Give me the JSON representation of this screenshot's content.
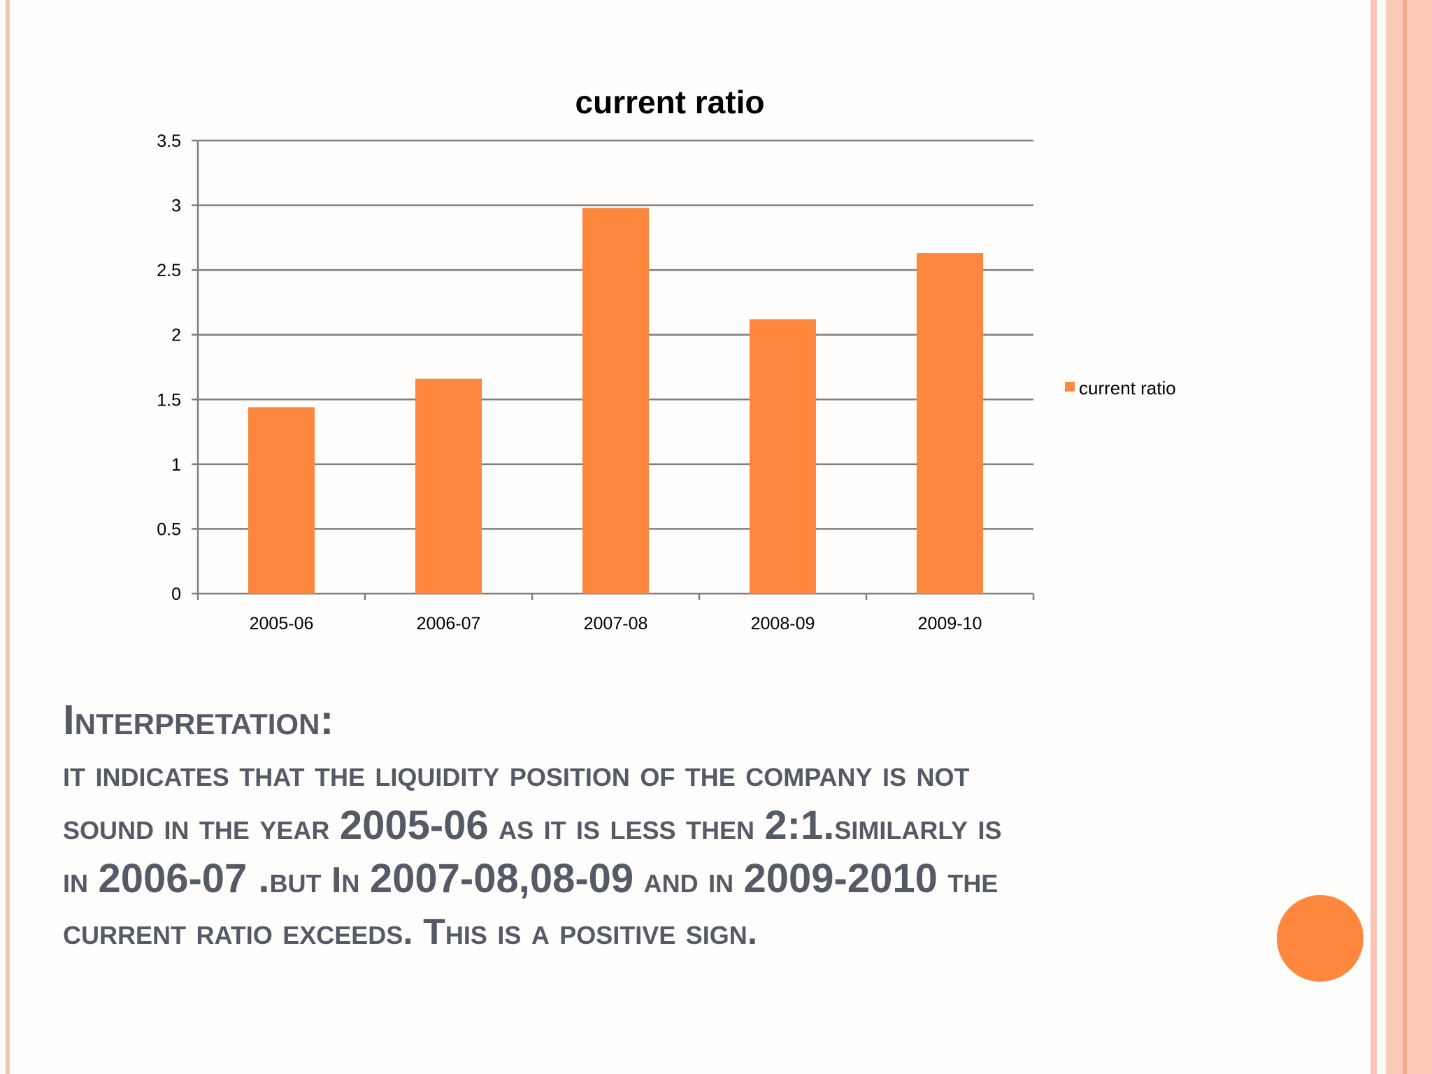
{
  "chart_data": {
    "type": "bar",
    "title": "current ratio",
    "categories": [
      "2005-06",
      "2006-07",
      "2007-08",
      "2008-09",
      "2009-10"
    ],
    "series": [
      {
        "name": "current ratio",
        "values": [
          1.44,
          1.66,
          2.98,
          2.12,
          2.63
        ]
      }
    ],
    "ylim": [
      0,
      3.5
    ],
    "yticks": [
      "0",
      "0.5",
      "1",
      "1.5",
      "2",
      "2.5",
      "3",
      "3.5"
    ],
    "grid": true,
    "legend_position": "right",
    "bar_color": "#fc873d"
  },
  "interpretation": {
    "heading": "Interpretation:",
    "line1": "it indicates that the liquidity position of the company is not",
    "line2a": "sound in the year ",
    "line2b": "2005-06",
    "line2c": " as it is less then ",
    "line2d": "2:1.",
    "line2e": "similarly is",
    "line3a": "in ",
    "line3b": "2006-07 .",
    "line3c": "but In ",
    "line3d": "2007-08,08-09",
    "line3e": " and in ",
    "line3f": "2009-2010",
    "line3g": " the",
    "line4": "current ratio exceeds. This is a positive sign."
  },
  "theme": {
    "text_color": "#555a67",
    "accent": "#fc873d",
    "frame": "#f8c2ad"
  }
}
